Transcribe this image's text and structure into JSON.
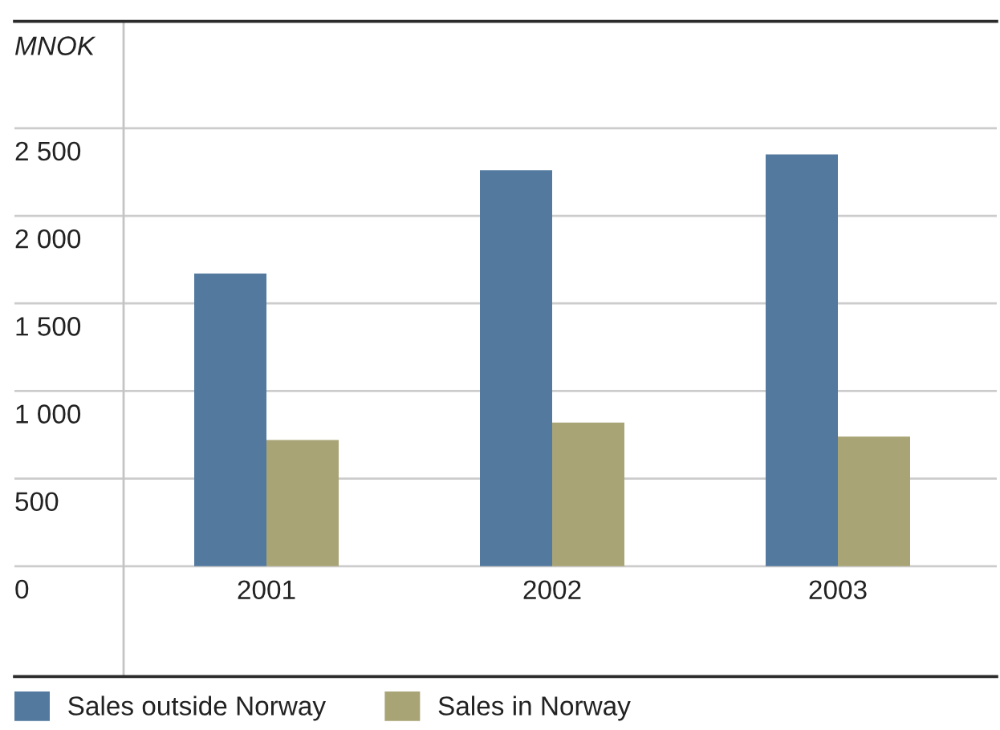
{
  "chart_data": {
    "type": "bar",
    "ylabel": "MNOK",
    "categories": [
      "2001",
      "2002",
      "2003"
    ],
    "series": [
      {
        "name": "Sales outside Norway",
        "color": "#53799f",
        "values": [
          1670,
          2260,
          2350
        ]
      },
      {
        "name": "Sales in Norway",
        "color": "#a9a475",
        "values": [
          720,
          820,
          740
        ]
      }
    ],
    "ylim": [
      -630,
      3110
    ],
    "yticks": [
      0,
      500,
      {
        "value": 1000,
        "label": "1 000"
      },
      {
        "value": 1500,
        "label": "1 500"
      },
      {
        "value": 2000,
        "label": "2 000"
      },
      {
        "value": 2500,
        "label": "2 500"
      }
    ],
    "grid": "y",
    "legend": "bottom"
  }
}
